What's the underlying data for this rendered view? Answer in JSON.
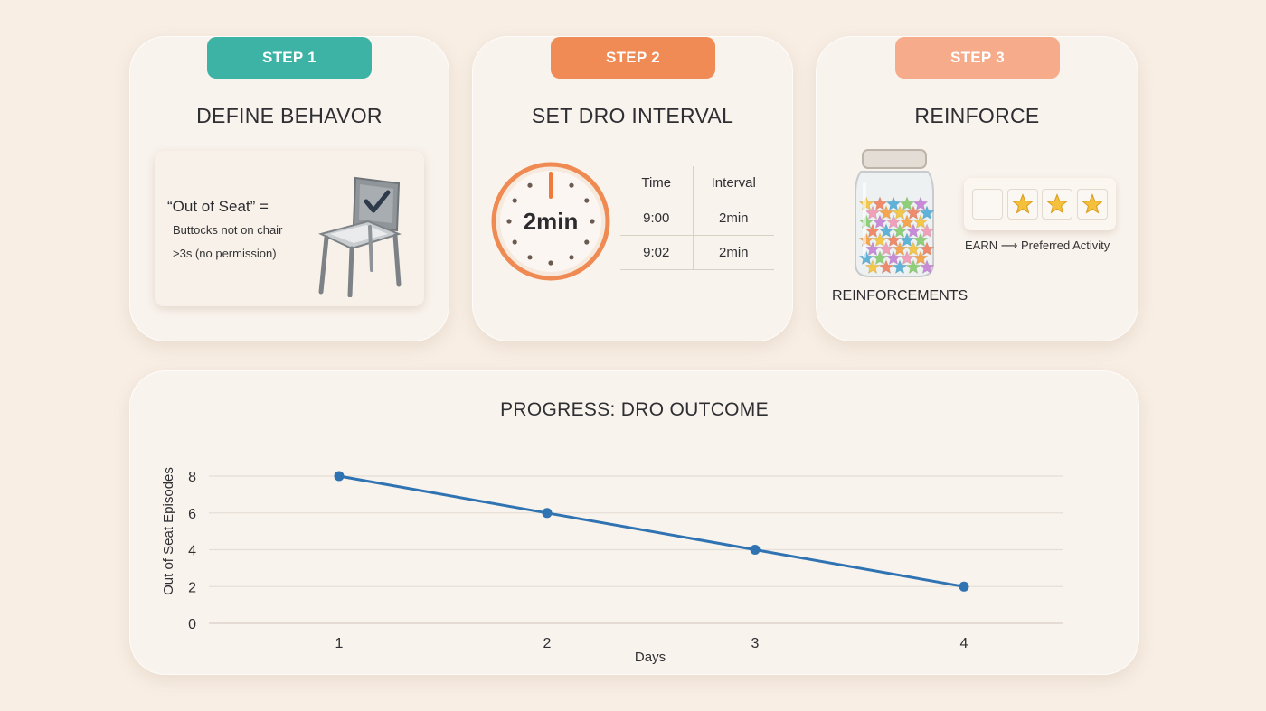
{
  "steps": [
    {
      "badge": "STEP 1",
      "badge_color": "#3db3a6",
      "title": "DEFINE BEHAVOR",
      "definition": {
        "quote": "“Out of Seat” =",
        "line1": "Buttocks not on chair",
        "line2": ">3s (no permission)"
      },
      "icon": "chair-check-icon"
    },
    {
      "badge": "STEP 2",
      "badge_color": "#f18b55",
      "title": "SET DRO INTERVAL",
      "clock_label": "2min",
      "table": {
        "headers": [
          "Time",
          "Interval"
        ],
        "rows": [
          [
            "9:00",
            "2min"
          ],
          [
            "9:02",
            "2min"
          ]
        ]
      }
    },
    {
      "badge": "STEP 3",
      "badge_color": "#f6ac8b",
      "title": "REINFORCE",
      "jar_label": "REINFORCEMENTS",
      "stars_earned": 3,
      "stars_total": 4,
      "earn_prefix": "EARN",
      "earn_arrow": "⟶",
      "earn_target": "Preferred Activity"
    }
  ],
  "progress": {
    "title": "PROGRESS: DRO OUTCOME"
  },
  "chart_data": {
    "type": "line",
    "title": "PROGRESS: DRO OUTCOME",
    "xlabel": "Days",
    "ylabel": "Out of Seat Episodes",
    "x": [
      1,
      2,
      3,
      4
    ],
    "y_ticks": [
      0,
      2,
      4,
      6,
      8
    ],
    "ylim": [
      0,
      8
    ],
    "grid": true,
    "series": [
      {
        "values": [
          8,
          6,
          4,
          2
        ],
        "color": "#2f73b3"
      }
    ]
  }
}
